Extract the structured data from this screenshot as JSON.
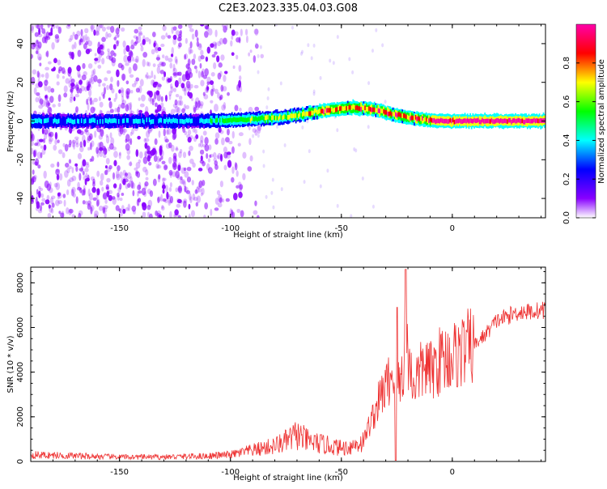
{
  "title": "C2E3.2023.335.04.03.G08",
  "chart_data": [
    {
      "type": "heatmap",
      "name": "spectrogram",
      "xlabel": "Height of straight line (km)",
      "ylabel": "Frequency (Hz)",
      "xlim": [
        -190,
        42
      ],
      "ylim": [
        -50,
        50
      ],
      "x_ticks": [
        -150,
        -100,
        -50,
        0
      ],
      "y_ticks": [
        -40,
        -20,
        0,
        20,
        40
      ],
      "grid": false,
      "description_ridge": [
        {
          "x": -190,
          "y": 0
        },
        {
          "x": -110,
          "y": 0
        },
        {
          "x": -90,
          "y": 1
        },
        {
          "x": -75,
          "y": 2
        },
        {
          "x": -60,
          "y": 5
        },
        {
          "x": -45,
          "y": 7
        },
        {
          "x": -35,
          "y": 6
        },
        {
          "x": -25,
          "y": 3
        },
        {
          "x": -15,
          "y": 1
        },
        {
          "x": -5,
          "y": 0
        },
        {
          "x": 42,
          "y": 0
        }
      ],
      "colorbar": {
        "label": "Normalized spectral amplitude",
        "ticks": [
          "0.0",
          "0.2",
          "0.4",
          "0.6",
          "0.8"
        ],
        "range": [
          0,
          1
        ],
        "colors": [
          "#ffffff",
          "#8800ff",
          "#0000ff",
          "#00ffff",
          "#00ff00",
          "#ffff00",
          "#ff0000",
          "#ff00aa"
        ]
      }
    },
    {
      "type": "line",
      "name": "snr",
      "xlabel": "Height of straight line (km)",
      "ylabel": "SNR (10 * v/v)",
      "xlim": [
        -190,
        42
      ],
      "ylim": [
        0,
        8700
      ],
      "x_ticks": [
        -150,
        -100,
        -50,
        0
      ],
      "y_ticks": [
        0,
        2000,
        4000,
        6000,
        8000
      ],
      "grid": false,
      "color": "#ee3333",
      "series": [
        {
          "x": [
            -190,
            -170,
            -150,
            -130,
            -110,
            -100,
            -90,
            -80,
            -75,
            -70,
            -65,
            -60,
            -55,
            -50,
            -45,
            -40,
            -38,
            -35,
            -32,
            -30,
            -28,
            -26,
            -24,
            -22,
            -20,
            -18,
            -15,
            -12,
            -10,
            -5,
            0,
            5,
            10,
            15,
            20,
            25,
            30,
            35,
            42
          ],
          "values": [
            300,
            250,
            200,
            200,
            250,
            300,
            500,
            700,
            900,
            1200,
            900,
            800,
            700,
            600,
            700,
            900,
            1500,
            2200,
            3000,
            3300,
            3800,
            4000,
            3500,
            4200,
            5000,
            3500,
            3900,
            4300,
            4000,
            4600,
            4700,
            5000,
            5200,
            5700,
            6300,
            6500,
            6700,
            6700,
            6800
          ]
        }
      ]
    }
  ]
}
